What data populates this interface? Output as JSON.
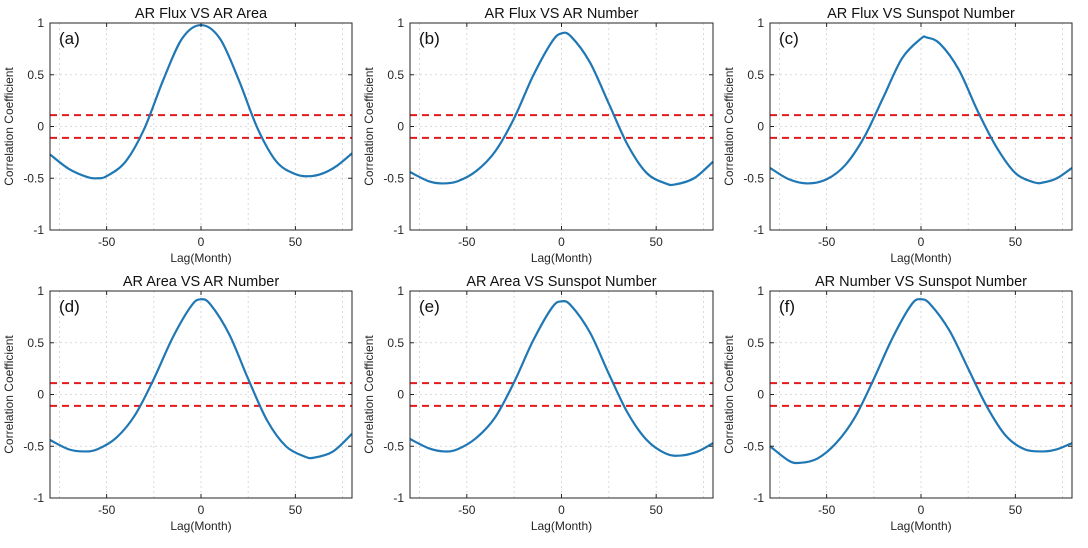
{
  "chart_data": [
    {
      "type": "line",
      "title": "AR Flux VS AR Area",
      "panel_label": "(a)",
      "xlabel": "Lag(Month)",
      "ylabel": "Correlation Coefficient",
      "xlim": [
        -80,
        80
      ],
      "ylim": [
        -1,
        1
      ],
      "xticks": [
        -50,
        0,
        50
      ],
      "yticks": [
        -1,
        -0.5,
        0,
        0.5,
        1
      ],
      "grid": true,
      "thresholds": [
        0.11,
        -0.11
      ],
      "series": [
        {
          "name": "correlation",
          "x": [
            -80,
            -70,
            -60,
            -55,
            -50,
            -40,
            -30,
            -20,
            -10,
            0,
            10,
            20,
            30,
            40,
            50,
            58,
            65,
            72,
            80
          ],
          "values": [
            -0.27,
            -0.41,
            -0.49,
            -0.5,
            -0.48,
            -0.34,
            -0.02,
            0.45,
            0.85,
            0.98,
            0.85,
            0.45,
            -0.02,
            -0.34,
            -0.46,
            -0.48,
            -0.45,
            -0.38,
            -0.26
          ]
        }
      ]
    },
    {
      "type": "line",
      "title": "AR Flux VS AR Number",
      "panel_label": "(b)",
      "xlabel": "Lag(Month)",
      "ylabel": "Correlation Coefficient",
      "xlim": [
        -80,
        80
      ],
      "ylim": [
        -1,
        1
      ],
      "xticks": [
        -50,
        0,
        50
      ],
      "yticks": [
        -1,
        -0.5,
        0,
        0.5,
        1
      ],
      "grid": true,
      "thresholds": [
        0.11,
        -0.11
      ],
      "series": [
        {
          "name": "correlation",
          "x": [
            -80,
            -70,
            -63,
            -55,
            -45,
            -35,
            -25,
            -15,
            -5,
            0,
            5,
            15,
            25,
            35,
            45,
            55,
            60,
            70,
            80
          ],
          "values": [
            -0.44,
            -0.53,
            -0.55,
            -0.53,
            -0.43,
            -0.24,
            0.08,
            0.49,
            0.82,
            0.9,
            0.87,
            0.62,
            0.22,
            -0.18,
            -0.45,
            -0.55,
            -0.56,
            -0.5,
            -0.34
          ]
        }
      ]
    },
    {
      "type": "line",
      "title": "AR Flux VS Sunspot Number",
      "panel_label": "(c)",
      "xlabel": "Lag(Month)",
      "ylabel": "Correlation Coefficient",
      "xlim": [
        -80,
        80
      ],
      "ylim": [
        -1,
        1
      ],
      "xticks": [
        -50,
        0,
        50
      ],
      "yticks": [
        -1,
        -0.5,
        0,
        0.5,
        1
      ],
      "grid": true,
      "thresholds": [
        0.11,
        -0.11
      ],
      "series": [
        {
          "name": "correlation",
          "x": [
            -80,
            -70,
            -60,
            -50,
            -40,
            -30,
            -20,
            -10,
            0,
            3,
            10,
            20,
            30,
            40,
            50,
            60,
            65,
            72,
            80
          ],
          "values": [
            -0.4,
            -0.51,
            -0.55,
            -0.51,
            -0.37,
            -0.1,
            0.28,
            0.66,
            0.85,
            0.86,
            0.8,
            0.55,
            0.15,
            -0.2,
            -0.45,
            -0.54,
            -0.54,
            -0.5,
            -0.4
          ]
        }
      ]
    },
    {
      "type": "line",
      "title": "AR Area VS AR Number",
      "panel_label": "(d)",
      "xlabel": "Lag(Month)",
      "ylabel": "Correlation Coefficient",
      "xlim": [
        -80,
        80
      ],
      "ylim": [
        -1,
        1
      ],
      "xticks": [
        -50,
        0,
        50
      ],
      "yticks": [
        -1,
        -0.5,
        0,
        0.5,
        1
      ],
      "grid": true,
      "thresholds": [
        0.11,
        -0.11
      ],
      "series": [
        {
          "name": "correlation",
          "x": [
            -80,
            -70,
            -62,
            -55,
            -45,
            -35,
            -25,
            -15,
            -5,
            0,
            5,
            15,
            25,
            35,
            45,
            55,
            60,
            70,
            80
          ],
          "values": [
            -0.44,
            -0.53,
            -0.55,
            -0.53,
            -0.42,
            -0.2,
            0.15,
            0.55,
            0.86,
            0.92,
            0.87,
            0.58,
            0.15,
            -0.25,
            -0.5,
            -0.6,
            -0.61,
            -0.55,
            -0.38
          ]
        }
      ]
    },
    {
      "type": "line",
      "title": "AR Area VS Sunspot Number",
      "panel_label": "(e)",
      "xlabel": "Lag(Month)",
      "ylabel": "Correlation Coefficient",
      "xlim": [
        -80,
        80
      ],
      "ylim": [
        -1,
        1
      ],
      "xticks": [
        -50,
        0,
        50
      ],
      "yticks": [
        -1,
        -0.5,
        0,
        0.5,
        1
      ],
      "grid": true,
      "thresholds": [
        0.11,
        -0.11
      ],
      "series": [
        {
          "name": "correlation",
          "x": [
            -80,
            -70,
            -62,
            -55,
            -45,
            -35,
            -25,
            -15,
            -5,
            0,
            5,
            15,
            25,
            35,
            45,
            55,
            63,
            72,
            80
          ],
          "values": [
            -0.43,
            -0.52,
            -0.55,
            -0.53,
            -0.42,
            -0.22,
            0.12,
            0.52,
            0.84,
            0.9,
            0.86,
            0.6,
            0.2,
            -0.18,
            -0.44,
            -0.57,
            -0.59,
            -0.55,
            -0.47
          ]
        }
      ]
    },
    {
      "type": "line",
      "title": "AR Number VS Sunspot Number",
      "panel_label": "(f)",
      "xlabel": "Lag(Month)",
      "ylabel": "Correlation Coefficient",
      "xlim": [
        -80,
        80
      ],
      "ylim": [
        -1,
        1
      ],
      "xticks": [
        -50,
        0,
        50
      ],
      "yticks": [
        -1,
        -0.5,
        0,
        0.5,
        1
      ],
      "grid": true,
      "thresholds": [
        0.11,
        -0.11
      ],
      "series": [
        {
          "name": "correlation",
          "x": [
            -80,
            -70,
            -64,
            -55,
            -45,
            -35,
            -25,
            -15,
            -5,
            0,
            5,
            15,
            25,
            35,
            45,
            55,
            65,
            72,
            80
          ],
          "values": [
            -0.5,
            -0.64,
            -0.66,
            -0.62,
            -0.47,
            -0.22,
            0.15,
            0.55,
            0.87,
            0.92,
            0.87,
            0.62,
            0.25,
            -0.12,
            -0.4,
            -0.53,
            -0.55,
            -0.53,
            -0.47
          ]
        }
      ]
    }
  ]
}
